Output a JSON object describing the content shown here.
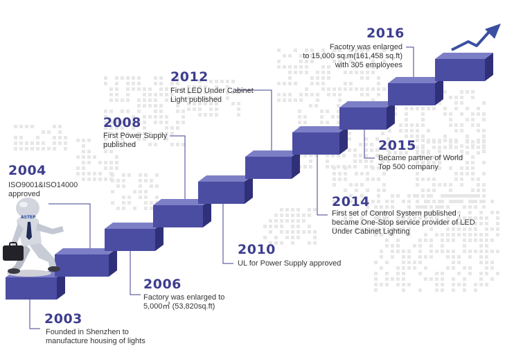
{
  "colors": {
    "step_front": "#4b4da3",
    "step_top": "#7d7fc6",
    "step_side": "#2f3078",
    "year_text": "#3d3d8f",
    "leader_line": "#3d3d8f",
    "map_dots": "#e7e7e7",
    "arrow": "#3b4fa0"
  },
  "icons": {
    "mascot": "businessman-running-icon",
    "arrow": "trend-arrow-icon",
    "map": "world-map-dots"
  },
  "logo_text": "ASTEP",
  "milestones": [
    {
      "year": "2003",
      "lines": [
        "Founded in Shenzhen to",
        "manufacture housing of lights"
      ]
    },
    {
      "year": "2004",
      "lines": [
        "ISO9001&ISO14000",
        "approved"
      ]
    },
    {
      "year": "2006",
      "lines": [
        "Factory was enlarged to",
        "5,000㎡ (53,820sq.ft)"
      ]
    },
    {
      "year": "2008",
      "lines": [
        "First Power Supply",
        "published"
      ]
    },
    {
      "year": "2010",
      "lines": [
        "UL for Power Supply approved"
      ]
    },
    {
      "year": "2012",
      "lines": [
        "First LED Under Cabinet",
        "Light published"
      ]
    },
    {
      "year": "2014",
      "lines": [
        "First set of Control System published ,",
        "became One-Stop service provider of LED",
        "Under Cabinet Lighting"
      ]
    },
    {
      "year": "2015",
      "lines": [
        "Became partner of World",
        "Top  500 company"
      ]
    },
    {
      "year": "2016",
      "lines": [
        "Facotry was enlarged",
        "to 15,000 sq.m(161,458 sq.ft)",
        "with 305 employees"
      ]
    }
  ]
}
